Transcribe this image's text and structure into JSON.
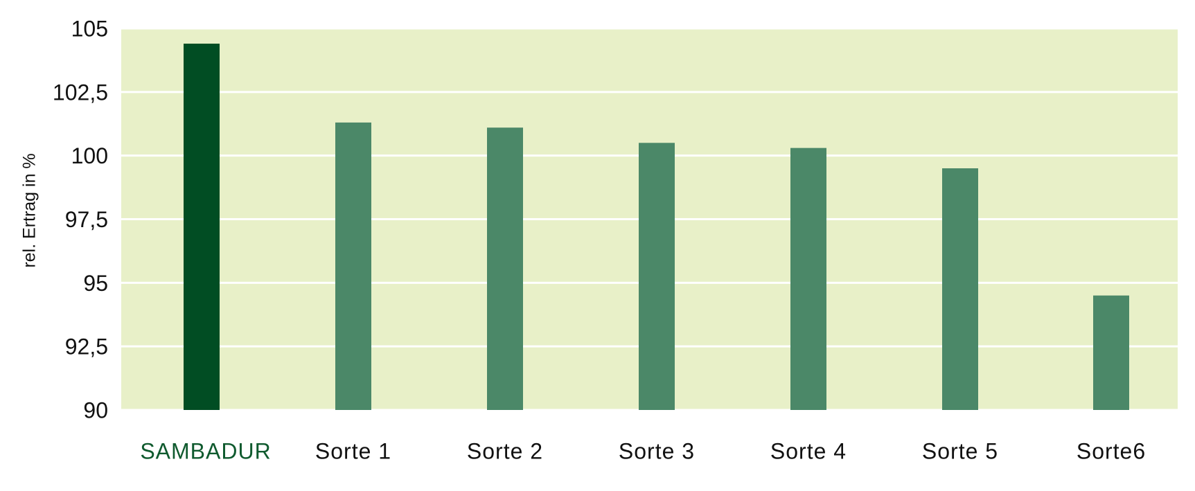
{
  "chart_data": {
    "type": "bar",
    "y_label": "rel. Ertrag in %",
    "categories": [
      "SAMBADUR",
      "Sorte 1",
      "Sorte 2",
      "Sorte 3",
      "Sorte 4",
      "Sorte 5",
      "Sorte6"
    ],
    "values": [
      104.4,
      101.3,
      101.1,
      100.5,
      100.3,
      99.5,
      94.5
    ],
    "colors": [
      "#014d23",
      "#4b8868",
      "#4b8868",
      "#4b8868",
      "#4b8868",
      "#4b8868",
      "#4b8868"
    ],
    "category_label_colors": [
      "#0f5a2e",
      "#111111",
      "#111111",
      "#111111",
      "#111111",
      "#111111",
      "#111111"
    ],
    "ylim": [
      90,
      105
    ],
    "yticks": [
      90,
      {
        "value": 92.5,
        "label": "92,5"
      },
      95,
      {
        "value": 97.5,
        "label": "97,5"
      },
      100,
      {
        "value": 102.5,
        "label": "102,5"
      },
      105
    ],
    "grid": true,
    "plot_background": "#e8f0c8"
  }
}
